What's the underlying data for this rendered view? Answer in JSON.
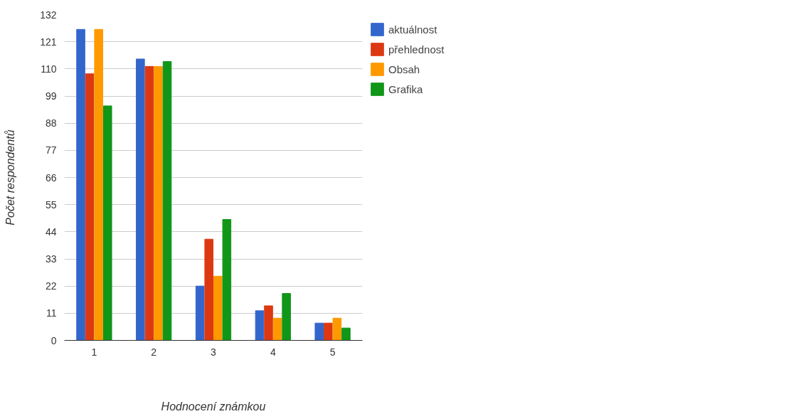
{
  "chart_data": {
    "type": "bar",
    "xlabel": "Hodnocení známkou",
    "ylabel": "Počet respondentů",
    "categories": [
      "1",
      "2",
      "3",
      "4",
      "5"
    ],
    "series": [
      {
        "name": "aktuálnost",
        "color": "#3366cc",
        "values": [
          126,
          114,
          22,
          12,
          7
        ]
      },
      {
        "name": "přehlednost",
        "color": "#dc3912",
        "values": [
          108,
          111,
          41,
          14,
          7
        ]
      },
      {
        "name": "Obsah",
        "color": "#ff9900",
        "values": [
          126,
          111,
          26,
          9,
          9
        ]
      },
      {
        "name": "Grafika",
        "color": "#109618",
        "values": [
          95,
          113,
          49,
          19,
          5
        ]
      }
    ],
    "ylim": [
      0,
      132
    ],
    "yticks": [
      0,
      11,
      22,
      33,
      44,
      55,
      66,
      77,
      88,
      99,
      110,
      121,
      132
    ],
    "grid": "y",
    "legend": "top right"
  }
}
